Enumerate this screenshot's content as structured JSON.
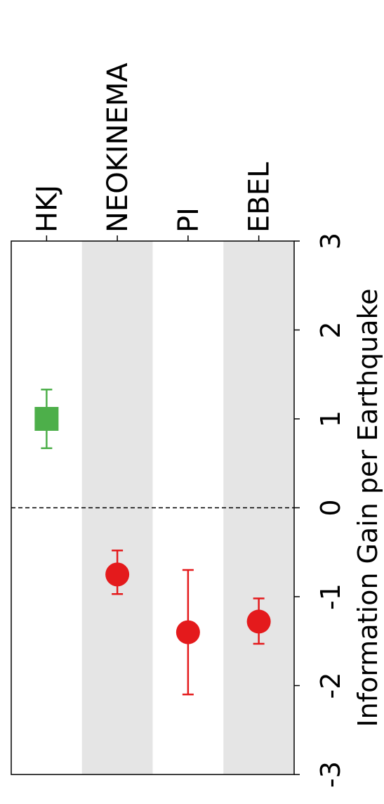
{
  "chart_data": {
    "type": "scatter",
    "orientation": "rotated-90",
    "categories": [
      "HKJ",
      "NEOKINEMA",
      "PI",
      "EBEL"
    ],
    "values": [
      1.0,
      -0.75,
      -1.4,
      -1.28
    ],
    "error_low": [
      0.67,
      -0.97,
      -2.1,
      -1.53
    ],
    "error_high": [
      1.33,
      -0.48,
      -0.7,
      -1.02
    ],
    "markers": [
      "square",
      "circle",
      "circle",
      "circle"
    ],
    "colors": [
      "#4daf4a",
      "#e41a1c",
      "#e41a1c",
      "#e41a1c"
    ],
    "ylabel": "Information Gain per Earthquake",
    "ylim": [
      -3,
      3
    ],
    "yticks": [
      "-3",
      "-2",
      "-1",
      "0",
      "1",
      "2",
      "3"
    ],
    "reference_line": 0,
    "band_color": "#e5e5e5",
    "shaded_categories": [
      "NEOKINEMA",
      "EBEL"
    ]
  }
}
